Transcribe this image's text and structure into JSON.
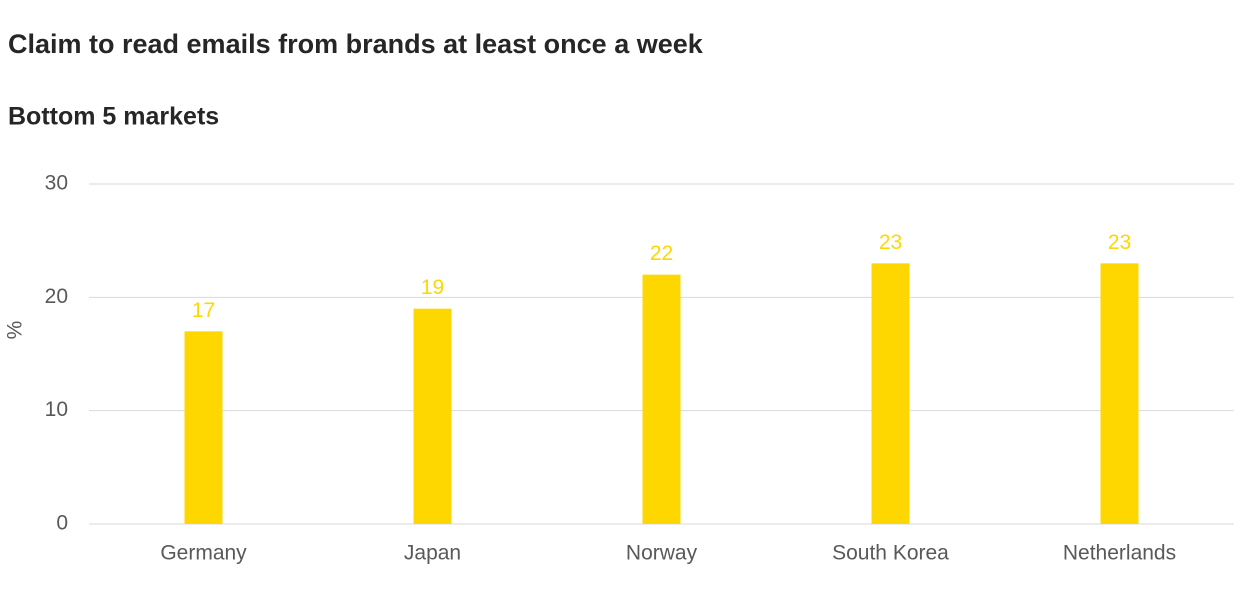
{
  "chart_data": {
    "type": "bar",
    "title": "Claim to read emails from brands at least once a week",
    "subtitle": "Bottom 5 markets",
    "y_label": "%",
    "categories": [
      "Germany",
      "Japan",
      "Norway",
      "South Korea",
      "Netherlands"
    ],
    "values": [
      17,
      19,
      22,
      23,
      23
    ],
    "color": "#ffd700",
    "ylim": [
      0,
      30
    ],
    "yticks": [
      0,
      10,
      20,
      30
    ],
    "grid": true
  }
}
